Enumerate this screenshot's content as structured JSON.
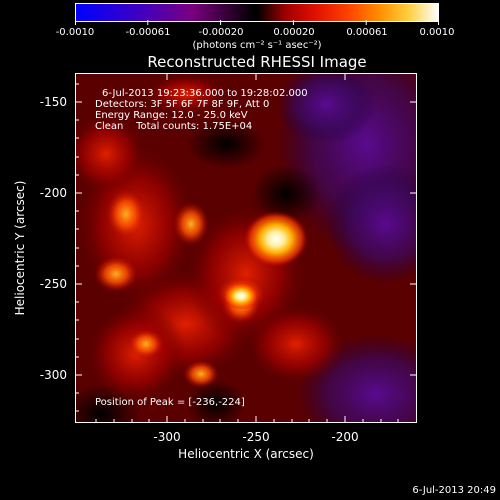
{
  "colorbar": {
    "tick_labels": [
      "-0.0010",
      "-0.00061",
      "-0.00020",
      "0.00020",
      "0.00061",
      "0.0010"
    ],
    "units": "(photons cm⁻² s⁻¹ asec⁻²)"
  },
  "title": "Reconstructed RHESSI Image",
  "annotations": {
    "time_range": "6-Jul-2013 19:23:36.000 to 19:28:02.000",
    "detectors": "Detectors: 3F 5F 6F 7F 8F 9F, Att 0",
    "energy_range": "Energy Range: 12.0 - 25.0 keV",
    "algorithm": "Clean    Total counts: 1.75E+04",
    "peak_position": "Position of Peak = [-236,-224]"
  },
  "axes": {
    "x_title": "Heliocentric X (arcsec)",
    "y_title": "Heliocentric Y (arcsec)",
    "x_tick_labels": [
      "-300",
      "-250",
      "-200"
    ],
    "y_tick_labels": [
      "-150",
      "-200",
      "-250",
      "-300"
    ]
  },
  "timestamp": "6-Jul-2013 20:49"
}
